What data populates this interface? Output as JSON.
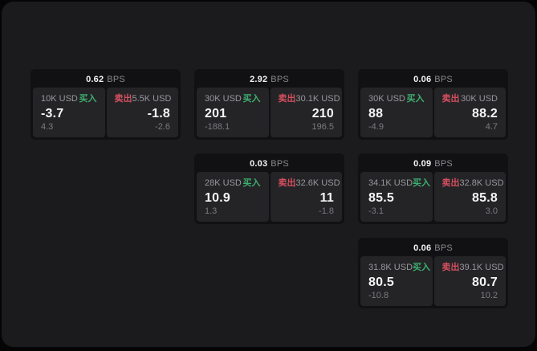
{
  "colors": {
    "outer_bg": "#050506",
    "panel_bg": "#1b1b1d",
    "card_bg": "#111113",
    "cell_bg": "#242427",
    "text_primary": "#f5f5f6",
    "text_secondary": "#98989c",
    "text_tertiary": "#7b7b7f",
    "buy_green": "#3daf6e",
    "sell_red": "#d44f5f"
  },
  "labels": {
    "bps_suffix": "BPS",
    "buy": "买入",
    "sell": "卖出"
  },
  "cards": [
    {
      "bps": "0.62",
      "buy": {
        "size": "10K USD",
        "value": "-3.7",
        "delta": "4.3"
      },
      "sell": {
        "size": "5.5K USD",
        "value": "-1.8",
        "delta": "-2.6"
      }
    },
    {
      "bps": "2.92",
      "buy": {
        "size": "30K USD",
        "value": "201",
        "delta": "-188.1"
      },
      "sell": {
        "size": "30.1K USD",
        "value": "210",
        "delta": "196.5"
      }
    },
    {
      "bps": "0.06",
      "buy": {
        "size": "30K USD",
        "value": "88",
        "delta": "-4.9"
      },
      "sell": {
        "size": "30K USD",
        "value": "88.2",
        "delta": "4.7"
      }
    },
    {
      "bps": "0.03",
      "buy": {
        "size": "28K USD",
        "value": "10.9",
        "delta": "1.3"
      },
      "sell": {
        "size": "32.6K USD",
        "value": "11",
        "delta": "-1.8"
      }
    },
    {
      "bps": "0.09",
      "buy": {
        "size": "34.1K USD",
        "value": "85.5",
        "delta": "-3.1"
      },
      "sell": {
        "size": "32.8K USD",
        "value": "85.8",
        "delta": "3.0"
      }
    },
    {
      "bps": "0.06",
      "buy": {
        "size": "31.8K USD",
        "value": "80.5",
        "delta": "-10.8"
      },
      "sell": {
        "size": "39.1K USD",
        "value": "80.7",
        "delta": "10.2"
      }
    }
  ]
}
